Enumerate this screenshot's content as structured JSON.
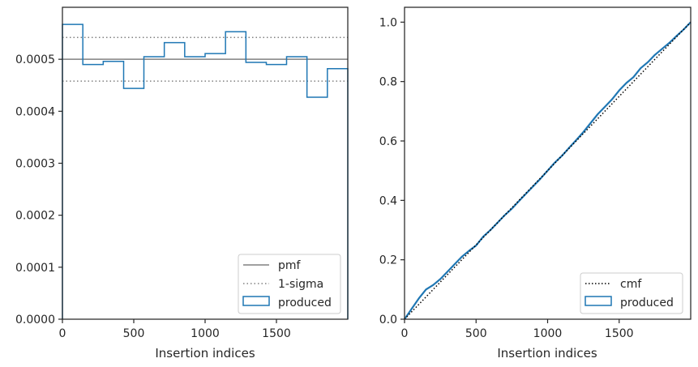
{
  "chart_data": [
    {
      "type": "line",
      "xlabel": "Insertion indices",
      "ylabel": "",
      "xlim": [
        0,
        2000
      ],
      "ylim": [
        0,
        0.0006
      ],
      "xticks": [
        0,
        500,
        1000,
        1500
      ],
      "xtick_labels": [
        "0",
        "500",
        "1000",
        "1500"
      ],
      "yticks": [
        0,
        0.0001,
        0.0002,
        0.0003,
        0.0004,
        0.0005
      ],
      "ytick_labels": [
        "0.0000",
        "0.0001",
        "0.0002",
        "0.0003",
        "0.0004",
        "0.0005"
      ],
      "grid": false,
      "legend_position": "lower-right",
      "legend": [
        "pmf",
        "1-sigma",
        "produced"
      ],
      "colors": {
        "pmf": "#808080",
        "sigma": "#808080",
        "produced": "#1f77b4"
      },
      "pmf": 0.0005,
      "sigma_band": [
        0.000458,
        0.000542
      ],
      "histogram": {
        "edges": [
          0,
          143,
          286,
          429,
          571,
          714,
          857,
          1000,
          1143,
          1286,
          1429,
          1571,
          1714,
          1857,
          2000
        ],
        "values": [
          0.000567,
          0.00049,
          0.000496,
          0.000444,
          0.000505,
          0.000532,
          0.000505,
          0.000511,
          0.000553,
          0.000494,
          0.00049,
          0.000505,
          0.000427,
          0.000482
        ]
      }
    },
    {
      "type": "line",
      "xlabel": "Insertion indices",
      "ylabel": "",
      "xlim": [
        0,
        2000
      ],
      "ylim": [
        0,
        1.05
      ],
      "xticks": [
        0,
        500,
        1000,
        1500
      ],
      "xtick_labels": [
        "0",
        "500",
        "1000",
        "1500"
      ],
      "yticks": [
        0,
        0.2,
        0.4,
        0.6,
        0.8,
        1.0
      ],
      "ytick_labels": [
        "0.0",
        "0.2",
        "0.4",
        "0.6",
        "0.8",
        "1.0"
      ],
      "grid": false,
      "legend_position": "lower-right",
      "legend": [
        "cmf",
        "produced"
      ],
      "colors": {
        "cmf": "#000000",
        "produced": "#1f77b4"
      },
      "cmf": {
        "x": [
          0,
          2000
        ],
        "y": [
          0,
          1.0
        ]
      },
      "produced": {
        "x": [
          0,
          50,
          100,
          150,
          200,
          250,
          300,
          350,
          400,
          450,
          500,
          550,
          600,
          650,
          700,
          750,
          800,
          850,
          900,
          950,
          1000,
          1050,
          1100,
          1150,
          1200,
          1250,
          1300,
          1350,
          1400,
          1450,
          1500,
          1550,
          1600,
          1650,
          1700,
          1750,
          1800,
          1850,
          1900,
          1950,
          2000
        ],
        "y": [
          0,
          0.035,
          0.07,
          0.1,
          0.115,
          0.135,
          0.16,
          0.185,
          0.21,
          0.23,
          0.248,
          0.278,
          0.3,
          0.325,
          0.35,
          0.372,
          0.398,
          0.423,
          0.448,
          0.473,
          0.5,
          0.527,
          0.55,
          0.577,
          0.603,
          0.63,
          0.66,
          0.69,
          0.715,
          0.74,
          0.77,
          0.795,
          0.815,
          0.845,
          0.865,
          0.89,
          0.91,
          0.93,
          0.953,
          0.975,
          1.0
        ]
      }
    }
  ]
}
